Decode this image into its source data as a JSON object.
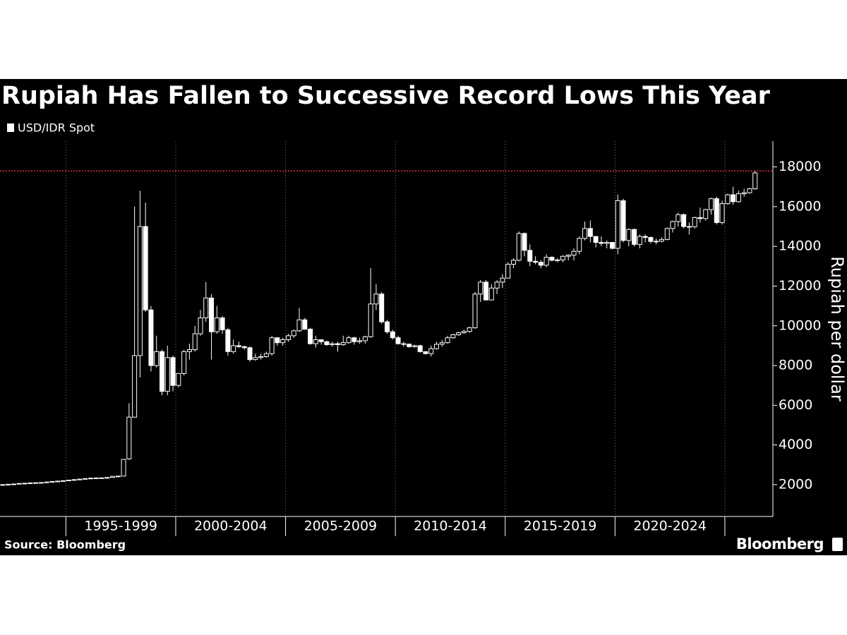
{
  "chart_data": {
    "type": "candlestick",
    "title": "Rupiah Has Fallen to Successive Record Lows This Year",
    "y_label": "Rupiah per dollar",
    "source": "Source: Bloomberg",
    "brand": "Bloomberg",
    "period_labels": [
      "1995-1999",
      "2000-2004",
      "2005-2009",
      "2010-2014",
      "2015-2019",
      "2020-2024"
    ],
    "ylim": [
      400,
      19300
    ],
    "yticks": [
      2000,
      4000,
      6000,
      8000,
      10000,
      12000,
      14000,
      16000,
      18000
    ],
    "reference_line": 17800,
    "reference_color": "#e0303a",
    "series": [
      {
        "name": "USD/IDR Spot",
        "color": "#ffffff",
        "open": [
          1990,
          2005,
          2020,
          2035,
          2062,
          2075,
          2090,
          2100,
          2110,
          2135,
          2160,
          2180,
          2200,
          2230,
          2255,
          2280,
          2308,
          2330,
          2340,
          2345,
          2363,
          2420,
          2432,
          3300,
          5400,
          8500,
          15000,
          10800,
          8000,
          8700,
          6700,
          8400,
          7000,
          7600,
          8700,
          8800,
          9600,
          10400,
          11400,
          9700,
          10400,
          9800,
          8700,
          9000,
          8950,
          8900,
          8300,
          8400,
          8450,
          8600,
          9400,
          9150,
          9300,
          9500,
          9750,
          10300,
          9830,
          9100,
          9300,
          9200,
          9050,
          9100,
          9050,
          9150,
          9400,
          9200,
          9250,
          9450,
          11100,
          11600,
          10200,
          9700,
          9400,
          9100,
          9080,
          8950,
          9000,
          8700,
          8600,
          8850,
          9070,
          9150,
          9400,
          9550,
          9650,
          9720,
          9900,
          11600,
          12200,
          11300,
          11900,
          12200,
          12400,
          13100,
          13300,
          14650,
          13800,
          13250,
          13200,
          13050,
          13450,
          13300,
          13320,
          13500,
          13560,
          13750,
          14400,
          14900,
          14500,
          14200,
          14150,
          14200,
          13900,
          16300,
          14300,
          14850,
          14100,
          14500,
          14450,
          14250,
          14260,
          14350,
          14900,
          15250,
          15600,
          15000,
          14990,
          15450,
          15400,
          15850,
          16400,
          15200,
          16150,
          16600,
          16250,
          16650,
          16700,
          16900
        ],
        "high": [
          2010,
          2025,
          2040,
          2065,
          2080,
          2095,
          2105,
          2115,
          2140,
          2165,
          2185,
          2205,
          2235,
          2260,
          2285,
          2312,
          2335,
          2345,
          2350,
          2368,
          2425,
          2440,
          3300,
          6100,
          16000,
          16800,
          16200,
          11000,
          9500,
          8800,
          9000,
          8500,
          7600,
          8800,
          9100,
          10000,
          10800,
          12200,
          11600,
          11000,
          10500,
          9900,
          9300,
          9200,
          9000,
          8950,
          8600,
          8600,
          8700,
          9500,
          9400,
          9400,
          9600,
          9800,
          10900,
          10400,
          9900,
          9500,
          9300,
          9250,
          9200,
          9200,
          9500,
          9500,
          9450,
          9400,
          9500,
          12900,
          12100,
          11700,
          10300,
          9800,
          9500,
          9200,
          9100,
          9050,
          9050,
          8700,
          9000,
          9200,
          9300,
          9500,
          9600,
          9700,
          9800,
          9950,
          11700,
          12300,
          12300,
          12100,
          12300,
          12600,
          13200,
          13400,
          14750,
          14700,
          14100,
          13500,
          13300,
          13600,
          13500,
          13400,
          13550,
          13600,
          13900,
          14500,
          15250,
          15300,
          14500,
          14500,
          14300,
          14200,
          16600,
          16400,
          14900,
          14900,
          14600,
          14600,
          14500,
          14400,
          14450,
          14950,
          15300,
          15700,
          15650,
          15200,
          15500,
          15950,
          15900,
          16450,
          16500,
          16300,
          16650,
          17000,
          16800,
          16900,
          16950,
          17800
        ],
        "low": [
          1985,
          2000,
          2015,
          2030,
          2058,
          2070,
          2085,
          2095,
          2105,
          2130,
          2155,
          2175,
          2195,
          2225,
          2250,
          2275,
          2300,
          2325,
          2335,
          2340,
          2360,
          2415,
          2425,
          3250,
          5400,
          7400,
          10700,
          7700,
          7900,
          6500,
          6500,
          6700,
          6900,
          7500,
          8300,
          8700,
          9500,
          10200,
          8300,
          9600,
          9600,
          8500,
          8600,
          8900,
          8800,
          8200,
          8250,
          8300,
          8400,
          8500,
          9000,
          9000,
          9200,
          9400,
          9700,
          9800,
          9050,
          8900,
          9050,
          9000,
          8950,
          8700,
          9000,
          9100,
          9050,
          9100,
          9100,
          9400,
          10800,
          10100,
          9600,
          9300,
          9050,
          8950,
          8900,
          8900,
          8650,
          8550,
          8450,
          8800,
          8950,
          9100,
          9350,
          9500,
          9600,
          9650,
          9850,
          11200,
          11300,
          11300,
          11600,
          11900,
          12400,
          12900,
          13250,
          13500,
          13000,
          13100,
          12900,
          12950,
          13250,
          13200,
          13200,
          13300,
          13300,
          13600,
          14300,
          14200,
          13950,
          14000,
          13900,
          13850,
          13600,
          14200,
          14000,
          14000,
          13900,
          14200,
          14150,
          14100,
          14200,
          14300,
          14700,
          15000,
          14900,
          14600,
          14900,
          15200,
          15300,
          15600,
          15100,
          15100,
          16100,
          16100,
          16200,
          16500,
          16650,
          16850
        ],
        "close": [
          2005,
          2020,
          2035,
          2062,
          2075,
          2090,
          2100,
          2110,
          2135,
          2160,
          2180,
          2200,
          2230,
          2255,
          2280,
          2308,
          2330,
          2340,
          2345,
          2363,
          2420,
          2432,
          3275,
          5400,
          8500,
          15000,
          10800,
          8000,
          8700,
          6700,
          8400,
          7000,
          7600,
          8700,
          8800,
          9600,
          10400,
          11400,
          9700,
          10400,
          9800,
          8700,
          9000,
          8950,
          8900,
          8300,
          8400,
          8450,
          8600,
          9400,
          9150,
          9300,
          9500,
          9750,
          10300,
          9830,
          9100,
          9300,
          9200,
          9050,
          9100,
          9050,
          9150,
          9400,
          9200,
          9250,
          9450,
          11100,
          11600,
          10200,
          9700,
          9400,
          9100,
          9080,
          8950,
          9000,
          8700,
          8600,
          8850,
          9070,
          9150,
          9400,
          9550,
          9650,
          9720,
          9900,
          11600,
          12200,
          11300,
          11900,
          12200,
          12400,
          13100,
          13300,
          14650,
          13800,
          13250,
          13200,
          13050,
          13450,
          13300,
          13320,
          13500,
          13560,
          13750,
          14400,
          14900,
          14500,
          14200,
          14150,
          14200,
          13900,
          16300,
          14300,
          14850,
          14100,
          14500,
          14450,
          14250,
          14260,
          14350,
          14900,
          15250,
          15600,
          15000,
          14990,
          15450,
          15400,
          15850,
          16400,
          15200,
          16150,
          16600,
          16250,
          16650,
          16700,
          16900,
          17700
        ]
      }
    ]
  }
}
